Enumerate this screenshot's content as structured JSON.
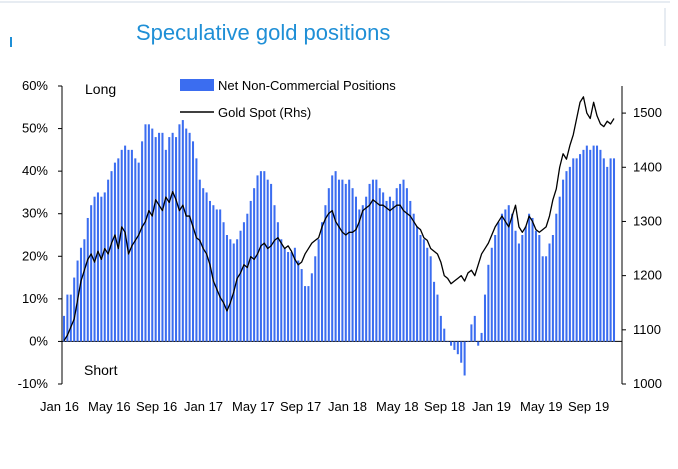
{
  "chart_data": {
    "type": "bar",
    "title": "Speculative gold positions",
    "annotations": {
      "top": "Long",
      "bottom": "Short"
    },
    "x_tick_labels": [
      "Jan 16",
      "May 16",
      "Sep 16",
      "Jan 17",
      "May 17",
      "Sep 17",
      "Jan 18",
      "May 18",
      "Sep 18",
      "Jan 19",
      "May 19",
      "Sep 19"
    ],
    "y_left": {
      "ticks": [
        "-10%",
        "0%",
        "10%",
        "20%",
        "30%",
        "40%",
        "50%",
        "60%"
      ],
      "ylim": [
        -10,
        60
      ],
      "unit": "%"
    },
    "y_right": {
      "ticks": [
        "1000",
        "1100",
        "1200",
        "1300",
        "1400",
        "1500"
      ],
      "ylim": [
        1000,
        1550
      ]
    },
    "legend": {
      "placement": "top-center"
    },
    "colors": {
      "bars": "#3b6df0",
      "line": "#000000",
      "title": "#1f8fd6"
    },
    "series": [
      {
        "name": "Net Non-Commercial Positions",
        "type": "bar",
        "axis": "left",
        "values": [
          6,
          11,
          11,
          15,
          19,
          22,
          24,
          29,
          32,
          34,
          35,
          34,
          35,
          38,
          40,
          42,
          43,
          45,
          46,
          45,
          45,
          43,
          42,
          47,
          51,
          51,
          50,
          48,
          49,
          49,
          45,
          48,
          49,
          48,
          51,
          52,
          50,
          49,
          47,
          43,
          38,
          36,
          35,
          33,
          32,
          31,
          31,
          28,
          25,
          24,
          23,
          24,
          26,
          28,
          30,
          33,
          36,
          39,
          40,
          40,
          38,
          37,
          32,
          28,
          24,
          22,
          21,
          21,
          22,
          19,
          17,
          13,
          13,
          16,
          20,
          24,
          28,
          32,
          36,
          39,
          40,
          38,
          38,
          37,
          38,
          36,
          34,
          31,
          32,
          34,
          37,
          38,
          38,
          36,
          35,
          33,
          34,
          33,
          36,
          37,
          38,
          36,
          33,
          30,
          27,
          25,
          24,
          22,
          20,
          14,
          11,
          6,
          3,
          0,
          -1,
          -2,
          -3,
          -5,
          -8,
          0,
          4,
          6,
          -1,
          2,
          11,
          18,
          22,
          25,
          28,
          30,
          31,
          32,
          30,
          26,
          23,
          25,
          27,
          30,
          29,
          26,
          25,
          20,
          20,
          23,
          25,
          30,
          34,
          38,
          40,
          41,
          43,
          43,
          44,
          45,
          46,
          45,
          46,
          46,
          45,
          43,
          41,
          43,
          43
        ]
      },
      {
        "name": "Gold Spot (Rhs)",
        "type": "line",
        "axis": "right",
        "values": [
          1080,
          1090,
          1105,
          1120,
          1155,
          1190,
          1210,
          1230,
          1240,
          1225,
          1245,
          1230,
          1250,
          1240,
          1260,
          1275,
          1250,
          1290,
          1280,
          1240,
          1255,
          1265,
          1275,
          1290,
          1300,
          1320,
          1310,
          1340,
          1330,
          1320,
          1345,
          1335,
          1355,
          1340,
          1320,
          1330,
          1310,
          1310,
          1290,
          1270,
          1265,
          1250,
          1240,
          1220,
          1190,
          1175,
          1160,
          1150,
          1135,
          1150,
          1170,
          1195,
          1205,
          1220,
          1215,
          1235,
          1230,
          1240,
          1255,
          1260,
          1250,
          1255,
          1265,
          1270,
          1260,
          1250,
          1255,
          1245,
          1230,
          1220,
          1225,
          1240,
          1250,
          1260,
          1265,
          1270,
          1290,
          1305,
          1315,
          1320,
          1300,
          1290,
          1280,
          1275,
          1280,
          1280,
          1285,
          1300,
          1320,
          1325,
          1330,
          1340,
          1335,
          1330,
          1330,
          1325,
          1320,
          1325,
          1330,
          1330,
          1320,
          1315,
          1310,
          1300,
          1290,
          1285,
          1270,
          1265,
          1250,
          1245,
          1240,
          1225,
          1200,
          1195,
          1185,
          1190,
          1195,
          1200,
          1190,
          1205,
          1210,
          1200,
          1220,
          1240,
          1250,
          1260,
          1275,
          1290,
          1300,
          1310,
          1300,
          1290,
          1310,
          1330,
          1290,
          1280,
          1290,
          1310,
          1300,
          1285,
          1280,
          1285,
          1290,
          1310,
          1340,
          1360,
          1400,
          1425,
          1415,
          1440,
          1460,
          1490,
          1520,
          1530,
          1500,
          1490,
          1520,
          1495,
          1480,
          1475,
          1485,
          1480,
          1490
        ]
      }
    ]
  }
}
